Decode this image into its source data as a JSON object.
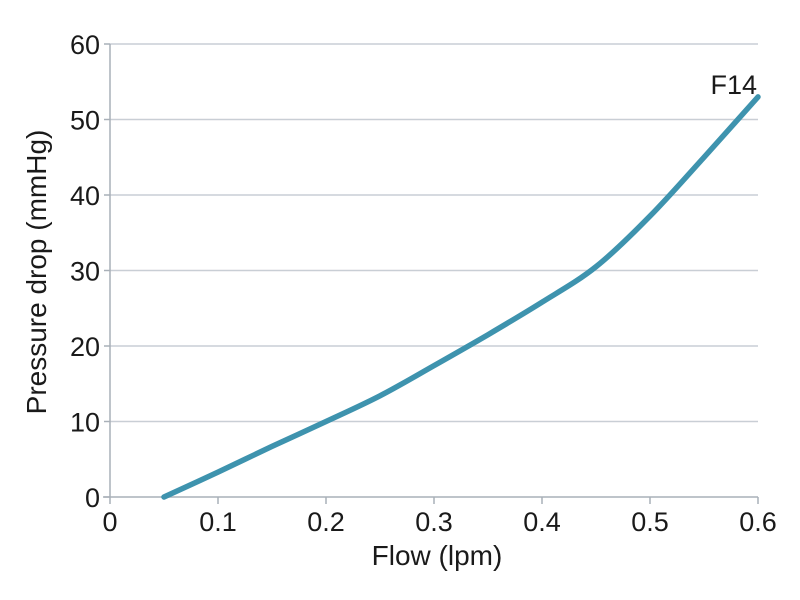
{
  "chart_data": {
    "type": "line",
    "title": "",
    "xlabel": "Flow (lpm)",
    "ylabel": "Pressure drop (mmHg)",
    "xlim": [
      0,
      0.6
    ],
    "ylim": [
      0,
      60
    ],
    "x_ticks": [
      "0",
      "0.1",
      "0.2",
      "0.3",
      "0.4",
      "0.5",
      "0.6"
    ],
    "y_ticks": [
      "0",
      "10",
      "20",
      "30",
      "40",
      "50",
      "60"
    ],
    "grid": "horizontal-only",
    "legend_position": "inline-label-at-line-end",
    "series": [
      {
        "name": "F14",
        "color": "#3e93ae",
        "x": [
          0.05,
          0.1,
          0.15,
          0.2,
          0.25,
          0.3,
          0.35,
          0.4,
          0.45,
          0.5,
          0.55,
          0.6
        ],
        "y": [
          0,
          3.3,
          6.7,
          10,
          13.4,
          17.4,
          21.5,
          25.8,
          30.5,
          37.2,
          45,
          53
        ]
      }
    ]
  },
  "colors": {
    "background": "#ffffff",
    "grid": "#c9ced5",
    "axis": "#a9b0b8",
    "text": "#1a1a1a",
    "series_f14": "#3e93ae"
  }
}
